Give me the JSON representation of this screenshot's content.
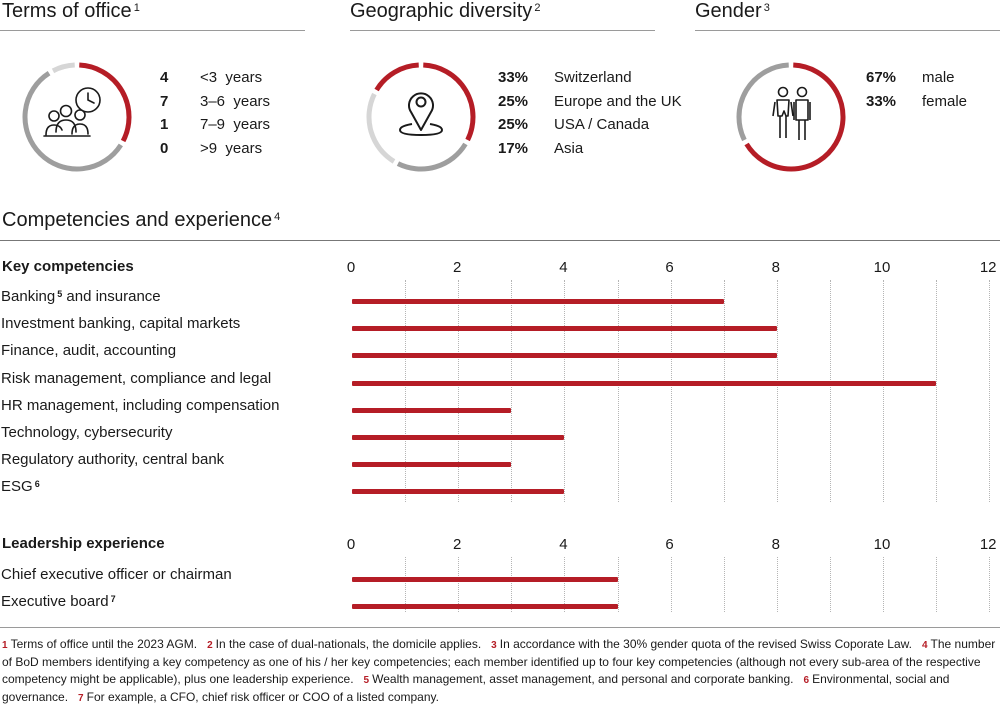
{
  "colors": {
    "accent": "#b51d26",
    "gray_dark": "#9e9e9e",
    "gray_light": "#d6d6d6",
    "rule": "#9a9a9a"
  },
  "terms": {
    "title": "Terms of office",
    "note": "1",
    "icon": "board-members-clock-icon",
    "rows": [
      {
        "value": "4",
        "label": "<3  years"
      },
      {
        "value": "7",
        "label": "3–6  years"
      },
      {
        "value": "1",
        "label": "7–9  years"
      },
      {
        "value": "0",
        "label": ">9  years"
      }
    ]
  },
  "geo": {
    "title": "Geographic diversity",
    "note": "2",
    "icon": "location-pin-icon",
    "rows": [
      {
        "value": "33%",
        "label": "Switzerland"
      },
      {
        "value": "25%",
        "label": "Europe and the UK"
      },
      {
        "value": "25%",
        "label": "USA / Canada"
      },
      {
        "value": "17%",
        "label": "Asia"
      }
    ]
  },
  "gender": {
    "title": "Gender",
    "note": "3",
    "icon": "male-female-icon",
    "rows": [
      {
        "value": "67%",
        "label": "male"
      },
      {
        "value": "33%",
        "label": "female"
      }
    ]
  },
  "competencies": {
    "title": "Competencies and experience",
    "note": "4"
  },
  "chart_data": [
    {
      "type": "bar",
      "orientation": "horizontal",
      "title": "Key competencies",
      "xlim": [
        0,
        12
      ],
      "ticks": [
        "0",
        "2",
        "4",
        "6",
        "8",
        "10",
        "12"
      ],
      "categories": [
        {
          "label": "Banking",
          "note": "5",
          "suffix": " and insurance"
        },
        {
          "label": "Investment banking, capital markets",
          "note": "",
          "suffix": ""
        },
        {
          "label": "Finance, audit, accounting",
          "note": "",
          "suffix": ""
        },
        {
          "label": "Risk management, compliance and legal",
          "note": "",
          "suffix": ""
        },
        {
          "label": "HR management, including compensation",
          "note": "",
          "suffix": ""
        },
        {
          "label": "Technology, cybersecurity",
          "note": "",
          "suffix": ""
        },
        {
          "label": "Regulatory authority, central bank",
          "note": "",
          "suffix": ""
        },
        {
          "label": "ESG",
          "note": "6",
          "suffix": ""
        }
      ],
      "values": [
        7,
        8,
        8,
        11,
        3,
        4,
        3,
        4
      ]
    },
    {
      "type": "bar",
      "orientation": "horizontal",
      "title": "Leadership experience",
      "xlim": [
        0,
        12
      ],
      "ticks": [
        "0",
        "2",
        "4",
        "6",
        "8",
        "10",
        "12"
      ],
      "categories": [
        {
          "label": "Chief executive officer or chairman",
          "note": "",
          "suffix": ""
        },
        {
          "label": "Executive board",
          "note": "7",
          "suffix": ""
        }
      ],
      "values": [
        5,
        5
      ]
    }
  ],
  "footnotes": [
    {
      "n": "1",
      "text": "Terms of office until the 2023 AGM."
    },
    {
      "n": "2",
      "text": "In the case of dual-nationals, the domicile applies."
    },
    {
      "n": "3",
      "text": "In accordance with the 30% gender quota of the revised Swiss Coporate Law."
    },
    {
      "n": "4",
      "text": "The number of BoD members identifying a key competency as one of his / her key competencies; each member identified up to four key competencies (although not every sub-area of the respective competency might be applicable), plus one leadership experience."
    },
    {
      "n": "5",
      "text": "Wealth management, asset management, and personal and corporate banking."
    },
    {
      "n": "6",
      "text": "Environmental, social and governance."
    },
    {
      "n": "7",
      "text": "For example, a CFO, chief risk officer or COO of a listed company."
    }
  ]
}
